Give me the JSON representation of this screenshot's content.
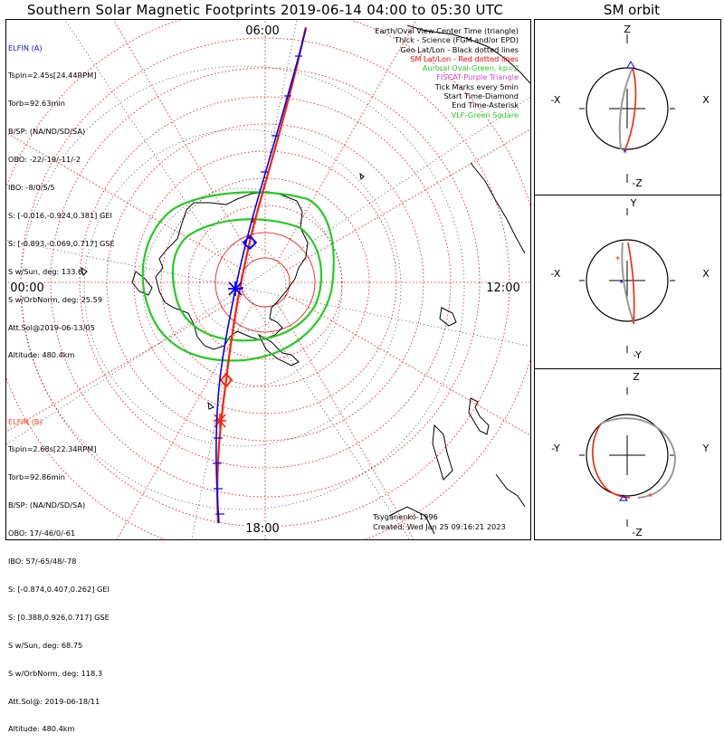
{
  "title": "Southern Solar Magnetic Footprints 2019-06-14 04:00 to 05:30 UTC",
  "orbit_panel_title": "SM orbit",
  "map": {
    "mlt_labels": {
      "top": "06:00",
      "left": "00:00",
      "right": "12:00",
      "bottom": "18:00"
    }
  },
  "elfin_a": {
    "name": "ELFIN (A)",
    "color": "#1010d0",
    "lines": [
      "Tspin=2.45s[24.44RPM]",
      "Torb=92.63min",
      "B/SP: (NA/ND/SD/SA)",
      "OBO: -22/-19/-11/-2",
      "IBO: -8/0/5/5",
      "S: [-0.016,-0.924,0.381] GEI",
      "S: [-0.893,-0.069,0.717] GSE",
      "S w/Sun, deg: 133.6",
      "S w/OrbNorm, deg: 25.59",
      "Att.Sol@2019-06-13/05",
      "Altitude: 480.4km"
    ]
  },
  "elfin_b": {
    "name": "ELFIN (B)",
    "color": "#ff4020",
    "lines": [
      "Tspin=2.68s[22.34RPM]",
      "Torb=92.86min",
      "B/SP: (NA/ND/SD/SA)",
      "OBO: 17/-46/0/-61",
      "IBO: 57/-65/48/-78",
      "S: [-0.874,0.407,0.262] GEI",
      "S: [0.388,0.926,0.717] GSE",
      "S w/Sun, deg: 68.75",
      "S w/OrbNorm, deg: 118.3",
      "Att.Sol@: 2019-06-18/11",
      "Altitude: 480.4km"
    ]
  },
  "legend": [
    {
      "text": "Earth/Oval View Center Time (triangle)",
      "color": "#000000"
    },
    {
      "text": "Thick - Science (FGM and/or EPD)",
      "color": "#000000"
    },
    {
      "text": "Geo Lat/Lon - Black dotted lines",
      "color": "#000000"
    },
    {
      "text": "SM Lat/Lon - Red dotted lines",
      "color": "#ff0000"
    },
    {
      "text": "Auroral Oval-Green, kp=2",
      "color": "#22cc22"
    },
    {
      "text": "FISCAT-Purple Triangle",
      "color": "#cc44cc"
    },
    {
      "text": "Tick Marks every 5min",
      "color": "#000000"
    },
    {
      "text": "Start Time-Diamond",
      "color": "#000000"
    },
    {
      "text": "End Time-Asterisk",
      "color": "#000000"
    },
    {
      "text": "VLF-Green Square",
      "color": "#22cc22"
    }
  ],
  "footer": {
    "model": "Tsyganenko-1996",
    "created": "Created: Wed Jan 25 09:16:21 2023"
  },
  "orbit_panels": [
    {
      "top": "Z",
      "bottom": "-Z",
      "left": "-X",
      "right": "X"
    },
    {
      "top": "Y",
      "bottom": "-Y",
      "left": "-X",
      "right": "X"
    },
    {
      "top": "Z",
      "bottom": "-Z",
      "left": "-Y",
      "right": "Y"
    }
  ],
  "colors": {
    "sm_grid": "#ff0000",
    "geo_grid": "#000000",
    "auroral_oval": "#22cc22",
    "elfin_a_track": "#0000ff",
    "elfin_b_track": "#ff2200",
    "orbit_gray": "#999999"
  }
}
